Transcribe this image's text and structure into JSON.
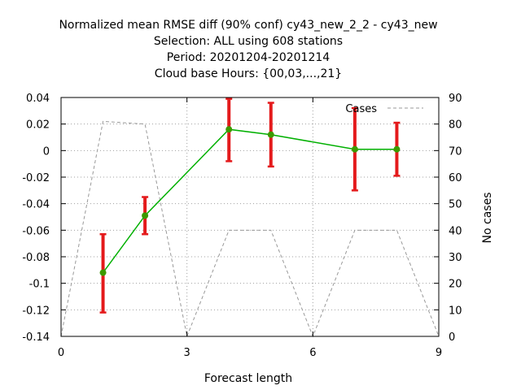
{
  "chart_data": {
    "type": "line",
    "title_lines": [
      "Normalized mean RMSE diff (90% conf) cy43_new_2_2 - cy43_new",
      "Selection: ALL using   608 stations",
      "Period: 20201204-20201214",
      "Cloud base   Hours: {00,03,...,21}"
    ],
    "xlabel": "Forecast length",
    "ylabel": "",
    "y2label": "No cases",
    "xlim": [
      0,
      9
    ],
    "ylim": [
      -0.14,
      0.04
    ],
    "y2lim": [
      0,
      90
    ],
    "x_ticks": [
      0,
      3,
      6,
      9
    ],
    "y_ticks": [
      0.04,
      0.02,
      0,
      -0.02,
      -0.04,
      -0.06,
      -0.08,
      -0.1,
      -0.12,
      -0.14
    ],
    "y_tick_labels": [
      "0.04",
      "0.02",
      "0",
      "-0.02",
      "-0.04",
      "-0.06",
      "-0.08",
      "-0.1",
      "-0.12",
      "-0.14"
    ],
    "y2_ticks": [
      0,
      10,
      20,
      30,
      40,
      50,
      60,
      70,
      80,
      90
    ],
    "grid": true,
    "legend_position": "top-right",
    "series": [
      {
        "kind": "line-errorbar",
        "color": "#00b000",
        "marker_color": "#3c9a00",
        "error_color": "#e41a1c",
        "x": [
          1,
          2,
          4,
          5,
          7,
          8
        ],
        "y": [
          -0.092,
          -0.049,
          0.016,
          0.012,
          0.001,
          0.001
        ],
        "y_low": [
          -0.122,
          -0.063,
          -0.008,
          -0.012,
          -0.03,
          -0.019
        ],
        "y_high": [
          -0.063,
          -0.035,
          0.039,
          0.036,
          0.032,
          0.021
        ]
      },
      {
        "name": "Cases",
        "kind": "dashed-line",
        "axis": "y2",
        "color": "#999999",
        "x": [
          0,
          1,
          2,
          3,
          4,
          5,
          6,
          7,
          8,
          9
        ],
        "y": [
          0,
          81,
          80,
          0,
          40,
          40,
          0,
          40,
          40,
          0
        ]
      }
    ]
  }
}
